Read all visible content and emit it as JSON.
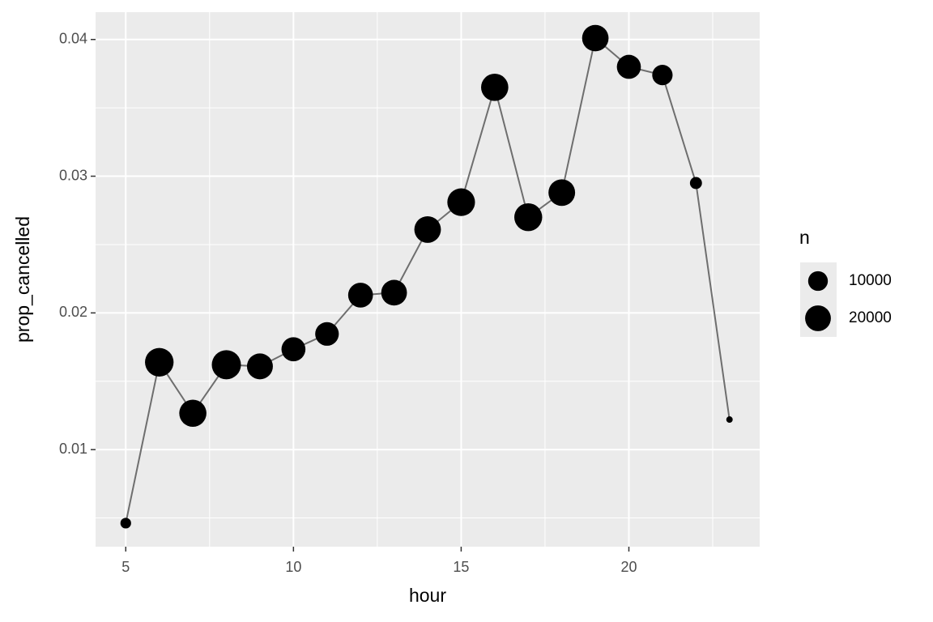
{
  "chart_data": {
    "type": "line",
    "x": [
      5,
      6,
      7,
      8,
      9,
      10,
      11,
      12,
      13,
      14,
      15,
      16,
      17,
      18,
      19,
      20,
      21,
      22,
      23
    ],
    "values": [
      0.00462,
      0.01639,
      0.01266,
      0.01621,
      0.01609,
      0.01734,
      0.01846,
      0.0213,
      0.02148,
      0.0261,
      0.0281,
      0.0365,
      0.027,
      0.0288,
      0.0401,
      0.038,
      0.0374,
      0.0295,
      0.0122
    ],
    "sizes": [
      1953,
      25951,
      22821,
      27242,
      20312,
      16708,
      16033,
      18181,
      19956,
      21706,
      23888,
      23002,
      24426,
      21783,
      21441,
      16739,
      10933,
      2639,
      1061
    ],
    "size_legend": {
      "title": "n",
      "breaks": [
        10000,
        20000
      ]
    },
    "x_label": "hour",
    "y_label": "prop_cancelled",
    "xlim": [
      4.1,
      23.9
    ],
    "ylim": [
      0.0029,
      0.042
    ],
    "xticks": [
      5,
      10,
      15,
      20
    ],
    "yticks": [
      0.01,
      0.02,
      0.03,
      0.04
    ],
    "grid": true,
    "line_color": "#6e6e6e",
    "point_color": "#000000"
  }
}
